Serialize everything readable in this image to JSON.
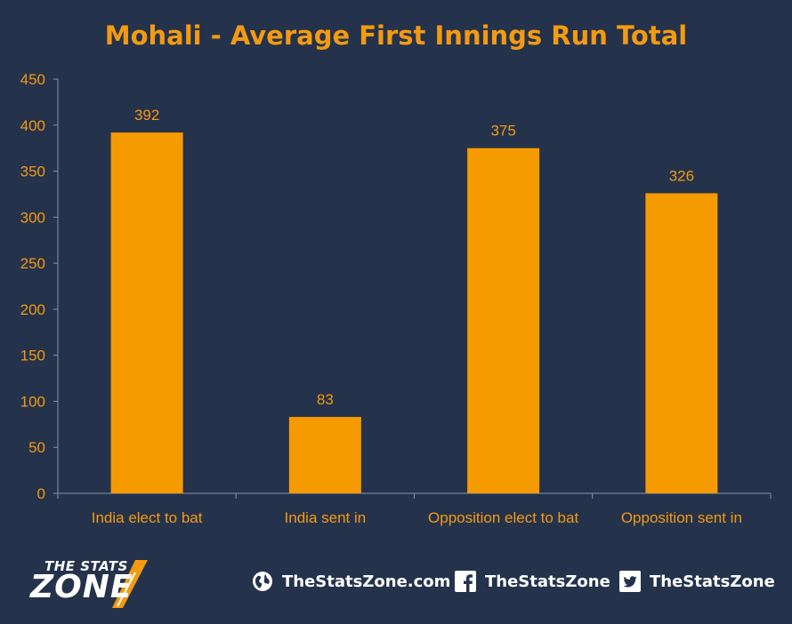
{
  "chart_data": {
    "type": "bar",
    "title": "Mohali - Average First Innings Run Total",
    "categories": [
      "India elect to bat",
      "India sent in",
      "Opposition elect to bat",
      "Opposition sent in"
    ],
    "values": [
      392,
      83,
      375,
      326
    ],
    "ylim": [
      0,
      450
    ],
    "yticks": [
      0,
      50,
      100,
      150,
      200,
      250,
      300,
      350,
      400,
      450
    ],
    "xlabel": "",
    "ylabel": "",
    "grid": false,
    "legend": "none",
    "bar_color": "#f59a00",
    "text_color": "#f39a12",
    "axis_color": "#8a93a3"
  },
  "footer": {
    "logo_line1": "THE STATS",
    "logo_line2": "ZONE",
    "website": "TheStatsZone.com",
    "facebook": "TheStatsZone",
    "twitter": "TheStatsZone"
  },
  "icons": {
    "website": "globe-icon",
    "facebook": "facebook-icon",
    "twitter": "twitter-icon"
  }
}
